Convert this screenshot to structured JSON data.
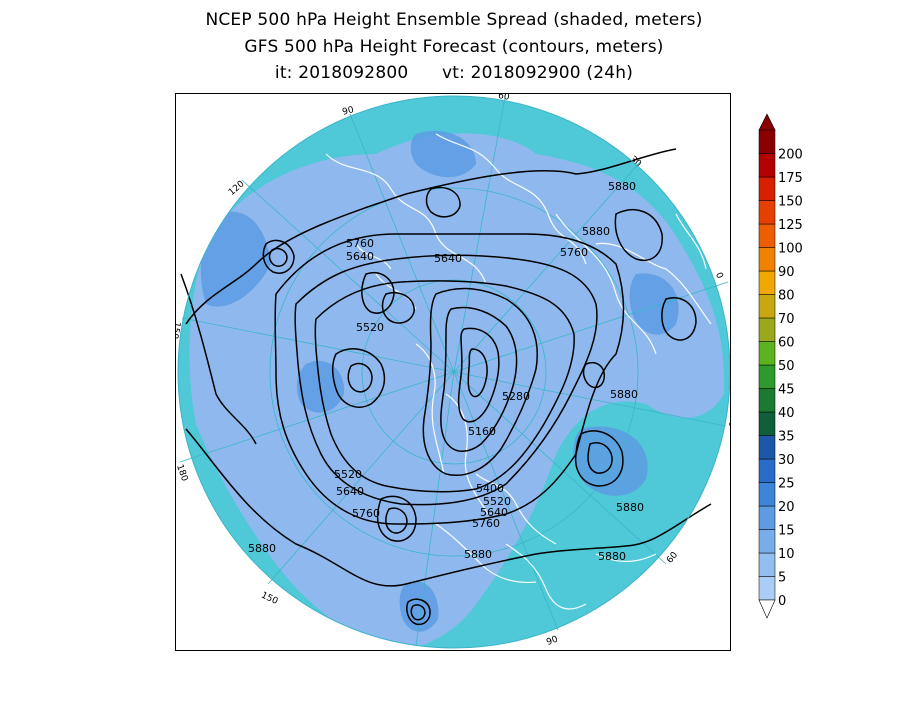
{
  "titles": {
    "line1": "NCEP 500 hPa Height Ensemble Spread (shaded, meters)",
    "line2": "GFS 500 hPa Height Forecast (contours, meters)",
    "line3": "it: 2018092800      vt: 2018092900 (24h)"
  },
  "colorbar": {
    "levels": [
      "0",
      "5",
      "10",
      "15",
      "20",
      "25",
      "30",
      "35",
      "40",
      "45",
      "50",
      "60",
      "70",
      "80",
      "90",
      "100",
      "125",
      "150",
      "175",
      "200"
    ],
    "colors": [
      "#a9cdf5",
      "#92bff0",
      "#78adea",
      "#5d9be3",
      "#3e84d8",
      "#2a6dc9",
      "#1c57a8",
      "#0f5f3c",
      "#1a7a30",
      "#2e9a2c",
      "#5cb320",
      "#9aa81b",
      "#c9a80f",
      "#f0a800",
      "#f08200",
      "#ec5e00",
      "#e64000",
      "#d82000",
      "#b30000",
      "#8a0000"
    ]
  },
  "map": {
    "projection": "polar-stereographic",
    "ocean_color": "#4fc8d8",
    "land_color": "#8fb9ee",
    "spread_color": "#5d9be3",
    "contour_color": "#000000",
    "border_color": "#ffffff",
    "longitude_labels": [
      "60",
      "30",
      "0",
      "30",
      "60",
      "90",
      "120",
      "150",
      "180",
      "150",
      "120",
      "90"
    ],
    "contour_labels": [
      {
        "text": "5880",
        "name": "contour-label-5880-ne"
      },
      {
        "text": "5880",
        "name": "contour-label-5880-ne2"
      },
      {
        "text": "5760",
        "name": "contour-label-5760-ne"
      },
      {
        "text": "5640",
        "name": "contour-label-5640-n"
      },
      {
        "text": "5760",
        "name": "contour-label-5760-nw"
      },
      {
        "text": "5640",
        "name": "contour-label-5640-nw"
      },
      {
        "text": "5520",
        "name": "contour-label-5520-w"
      },
      {
        "text": "5280",
        "name": "contour-label-5280"
      },
      {
        "text": "5160",
        "name": "contour-label-5160"
      },
      {
        "text": "5880",
        "name": "contour-label-5880-e"
      },
      {
        "text": "5880",
        "name": "contour-label-5880-se"
      },
      {
        "text": "5400",
        "name": "contour-label-5400"
      },
      {
        "text": "5520",
        "name": "contour-label-5520-s"
      },
      {
        "text": "5640",
        "name": "contour-label-5640-s"
      },
      {
        "text": "5760",
        "name": "contour-label-5760-s"
      },
      {
        "text": "5520",
        "name": "contour-label-5520-sw"
      },
      {
        "text": "5640",
        "name": "contour-label-5640-sw"
      },
      {
        "text": "5760",
        "name": "contour-label-5760-sw"
      },
      {
        "text": "5880",
        "name": "contour-label-5880-s"
      },
      {
        "text": "5880",
        "name": "contour-label-5880-sse"
      },
      {
        "text": "5880",
        "name": "contour-label-5880-w"
      }
    ]
  }
}
